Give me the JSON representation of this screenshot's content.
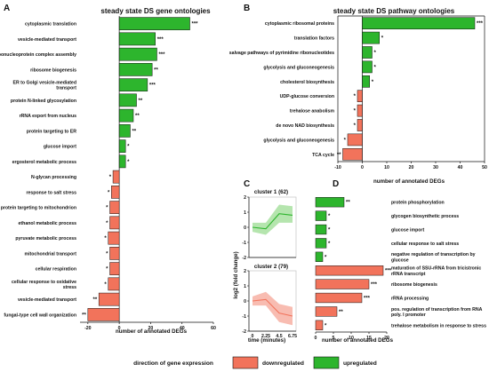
{
  "colors": {
    "up": "#2db52d",
    "down": "#f2735b",
    "down_light": "#f7b0a3",
    "up_light": "#a8e0a0",
    "star_up": "#5a2a82",
    "star_down": "#333333"
  },
  "legend": {
    "title": "direction of gene expression",
    "down": "downregulated",
    "up": "upregulated"
  },
  "chart_data": [
    {
      "panel": "A",
      "type": "bar",
      "orientation": "horizontal",
      "title": "steady state DS gene ontologies",
      "xlabel": "number of annotated DEGs",
      "xlim": [
        -25,
        60
      ],
      "xticks": [
        -20,
        0,
        20,
        40,
        60
      ],
      "categories": [
        "cytoplasmic translation",
        "vesicle-mediated transport",
        "ribonucleoprotein complex assembly",
        "ribosome biogenesis",
        "ER to Golgi vesicle-mediated transport",
        "protein N-linked glycosylation",
        "rRNA export from nucleus",
        "protein targeting to ER",
        "glucose import",
        "ergosterol metabolic process",
        "N-glycan processing",
        "response to salt stress",
        "protein targeting to mitochondrion",
        "ethanol metabolic process",
        "pyruvate metabolic process",
        "mitochondrial transport",
        "cellular respiration",
        "cellular response to oxidative stress",
        "vesicle-mediated transport",
        "fungal-type cell wall organization"
      ],
      "values": [
        45,
        23,
        24,
        21,
        18,
        11,
        9,
        7,
        4,
        4,
        -4,
        -5,
        -6,
        -6,
        -7,
        -6,
        -6,
        -7,
        -13,
        -20
      ],
      "significance": [
        "***",
        "***",
        "***",
        "**",
        "***",
        "**",
        "**",
        "**",
        "*",
        "*",
        "*",
        "*",
        "*",
        "*",
        "*",
        "*",
        "*",
        "*",
        "**",
        "**"
      ]
    },
    {
      "panel": "B",
      "type": "bar",
      "orientation": "horizontal",
      "title": "steady state DS pathway ontologies",
      "xlabel": "number of annotated DEGs",
      "xlim": [
        -10,
        50
      ],
      "xticks": [
        -10,
        0,
        10,
        20,
        30,
        40,
        50
      ],
      "categories": [
        "cytoplasmic ribosomal proteins",
        "translation factors",
        "salvage pathways of pyrimidine ribonucleotides",
        "glycolysis and gluconeogenesis",
        "cholesterol biosynthesis",
        "UDP-glucose conversion",
        "trehalose anabolism",
        "de novo NAD biosynthesis",
        "glycolysis and gluconeogenesis",
        "TCA cycle"
      ],
      "values": [
        46,
        7,
        4,
        4,
        3,
        -2,
        -2,
        -2,
        -6,
        -8
      ],
      "significance": [
        "***",
        "*",
        "*",
        "*",
        "*",
        "*",
        "*",
        "*",
        "*",
        "**"
      ]
    },
    {
      "panel": "C",
      "type": "line",
      "xlabel": "time (minutes)",
      "ylabel": "log2 (fold change)",
      "xticks": [
        0,
        2.25,
        4.5,
        6.75
      ],
      "ylim": [
        -2,
        2
      ],
      "yticks": [
        -2,
        -1,
        0,
        1,
        2
      ],
      "clusters": [
        {
          "title": "cluster 1 (62)",
          "x": [
            0,
            2.25,
            4.5,
            6.75
          ],
          "mean": [
            0,
            -0.1,
            0.9,
            0.8
          ],
          "lower": [
            -0.3,
            -0.5,
            0.3,
            0.3
          ],
          "upper": [
            0.3,
            0.3,
            1.5,
            1.4
          ]
        },
        {
          "title": "cluster 2 (79)",
          "x": [
            0,
            2.25,
            4.5,
            6.75
          ],
          "mean": [
            0,
            0.1,
            -0.8,
            -1.0
          ],
          "lower": [
            -0.3,
            -0.3,
            -1.4,
            -1.6
          ],
          "upper": [
            0.3,
            0.6,
            -0.2,
            -0.4
          ]
        }
      ]
    },
    {
      "panel": "D",
      "type": "bar",
      "orientation": "horizontal",
      "xlabel": "number of annotated DEGs",
      "xlim": [
        0,
        20
      ],
      "xticks": [
        0,
        5,
        10,
        15,
        20
      ],
      "categories": [
        "protein phosphorylation",
        "glycogen biosynthetic process",
        "glucose import",
        "cellular response to salt stress",
        "negative regulation of transcription by glucose",
        "maturation of SSU-rRNA from tricistronic rRNA transcript",
        "ribosome biogenesis",
        "rRNA processing",
        "pos. regulation of transcription from RNA poly. I promoter",
        "trehalose metabolism in response to stress"
      ],
      "values": [
        8,
        3,
        3,
        3,
        2,
        19,
        15,
        13,
        6,
        2
      ],
      "direction": [
        "up",
        "up",
        "up",
        "up",
        "up",
        "down",
        "down",
        "down",
        "down",
        "down"
      ],
      "significance": [
        "**",
        "*",
        "*",
        "*",
        "*",
        "***",
        "***",
        "***",
        "**",
        "*"
      ]
    }
  ]
}
